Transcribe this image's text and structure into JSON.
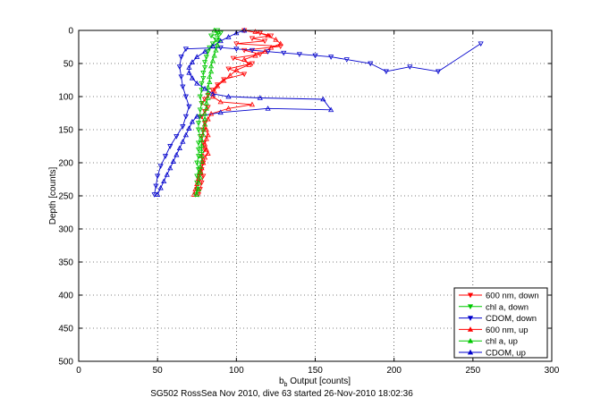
{
  "chart_data": {
    "type": "scatter",
    "xlabel_main": "b",
    "xlabel_sub": "b",
    "xlabel_rest": " Output [counts]",
    "ylabel": "Depth [counts]",
    "caption": "SG502 RossSea Nov 2010, dive 63 started 26-Nov-2010 18:02:36",
    "xlim": [
      0,
      300
    ],
    "ylim": [
      0,
      500
    ],
    "y_reversed": true,
    "xticks": [
      0,
      50,
      100,
      150,
      200,
      250,
      300
    ],
    "yticks": [
      0,
      50,
      100,
      150,
      200,
      250,
      300,
      350,
      400,
      450,
      500
    ],
    "grid": "dotted",
    "legend_position": "bottom-right",
    "series": [
      {
        "name": "600 nm, down",
        "color": "#ff0000",
        "marker": "down",
        "points": [
          [
            105,
            0
          ],
          [
            115,
            4
          ],
          [
            122,
            8
          ],
          [
            110,
            12
          ],
          [
            118,
            16
          ],
          [
            100,
            20
          ],
          [
            128,
            24
          ],
          [
            105,
            30
          ],
          [
            115,
            36
          ],
          [
            98,
            42
          ],
          [
            110,
            50
          ],
          [
            95,
            58
          ],
          [
            105,
            66
          ],
          [
            92,
            74
          ],
          [
            88,
            82
          ],
          [
            85,
            90
          ],
          [
            82,
            98
          ],
          [
            80,
            104
          ],
          [
            78,
            110
          ],
          [
            82,
            116
          ],
          [
            80,
            122
          ],
          [
            78,
            130
          ],
          [
            80,
            140
          ],
          [
            79,
            150
          ],
          [
            78,
            160
          ],
          [
            79,
            170
          ],
          [
            80,
            180
          ],
          [
            78,
            190
          ],
          [
            79,
            200
          ],
          [
            78,
            210
          ],
          [
            79,
            220
          ],
          [
            78,
            230
          ],
          [
            77,
            240
          ],
          [
            76,
            248
          ]
        ]
      },
      {
        "name": "chl a, down",
        "color": "#00c800",
        "marker": "down",
        "points": [
          [
            88,
            0
          ],
          [
            90,
            4
          ],
          [
            84,
            8
          ],
          [
            87,
            14
          ],
          [
            85,
            20
          ],
          [
            83,
            26
          ],
          [
            82,
            32
          ],
          [
            81,
            40
          ],
          [
            80,
            48
          ],
          [
            80,
            56
          ],
          [
            79,
            64
          ],
          [
            79,
            72
          ],
          [
            78,
            80
          ],
          [
            78,
            90
          ],
          [
            77,
            100
          ],
          [
            78,
            110
          ],
          [
            77,
            120
          ],
          [
            77,
            130
          ],
          [
            76,
            140
          ],
          [
            76,
            150
          ],
          [
            77,
            160
          ],
          [
            76,
            170
          ],
          [
            76,
            180
          ],
          [
            76,
            190
          ],
          [
            75,
            200
          ],
          [
            76,
            210
          ],
          [
            75,
            220
          ],
          [
            75,
            230
          ],
          [
            75,
            240
          ],
          [
            74,
            248
          ]
        ]
      },
      {
        "name": "CDOM, down",
        "color": "#0000cc",
        "marker": "down",
        "points": [
          [
            255,
            20
          ],
          [
            228,
            62
          ],
          [
            210,
            55
          ],
          [
            195,
            62
          ],
          [
            185,
            50
          ],
          [
            170,
            44
          ],
          [
            160,
            40
          ],
          [
            150,
            38
          ],
          [
            140,
            36
          ],
          [
            130,
            34
          ],
          [
            120,
            32
          ],
          [
            110,
            30
          ],
          [
            100,
            28
          ],
          [
            90,
            26
          ],
          [
            68,
            28
          ],
          [
            65,
            40
          ],
          [
            64,
            55
          ],
          [
            65,
            70
          ],
          [
            66,
            85
          ],
          [
            68,
            100
          ],
          [
            70,
            115
          ],
          [
            68,
            130
          ],
          [
            66,
            145
          ],
          [
            62,
            160
          ],
          [
            58,
            175
          ],
          [
            55,
            190
          ],
          [
            52,
            205
          ],
          [
            50,
            220
          ],
          [
            49,
            235
          ],
          [
            48,
            248
          ]
        ]
      },
      {
        "name": "600 nm, up",
        "color": "#ff0000",
        "marker": "up",
        "points": [
          [
            73,
            248
          ],
          [
            74,
            240
          ],
          [
            75,
            232
          ],
          [
            76,
            224
          ],
          [
            77,
            216
          ],
          [
            78,
            208
          ],
          [
            79,
            200
          ],
          [
            80,
            192
          ],
          [
            82,
            186
          ],
          [
            81,
            180
          ],
          [
            80,
            172
          ],
          [
            81,
            164
          ],
          [
            82,
            158
          ],
          [
            81,
            150
          ],
          [
            80,
            142
          ],
          [
            82,
            134
          ],
          [
            84,
            126
          ],
          [
            95,
            118
          ],
          [
            110,
            112
          ],
          [
            90,
            108
          ],
          [
            85,
            100
          ],
          [
            86,
            92
          ],
          [
            88,
            84
          ],
          [
            92,
            76
          ],
          [
            96,
            68
          ],
          [
            100,
            60
          ],
          [
            108,
            52
          ],
          [
            105,
            44
          ],
          [
            112,
            38
          ],
          [
            118,
            32
          ],
          [
            122,
            26
          ],
          [
            128,
            20
          ],
          [
            125,
            14
          ],
          [
            120,
            8
          ],
          [
            112,
            2
          ]
        ]
      },
      {
        "name": "chl a, up",
        "color": "#00c800",
        "marker": "up",
        "points": [
          [
            75,
            248
          ],
          [
            76,
            240
          ],
          [
            76,
            230
          ],
          [
            77,
            222
          ],
          [
            77,
            214
          ],
          [
            77,
            206
          ],
          [
            78,
            198
          ],
          [
            78,
            190
          ],
          [
            78,
            182
          ],
          [
            78,
            174
          ],
          [
            78,
            166
          ],
          [
            79,
            158
          ],
          [
            79,
            150
          ],
          [
            80,
            142
          ],
          [
            80,
            134
          ],
          [
            80,
            126
          ],
          [
            81,
            118
          ],
          [
            81,
            110
          ],
          [
            82,
            102
          ],
          [
            82,
            94
          ],
          [
            82,
            86
          ],
          [
            83,
            78
          ],
          [
            83,
            70
          ],
          [
            84,
            62
          ],
          [
            84,
            54
          ],
          [
            85,
            46
          ],
          [
            86,
            38
          ],
          [
            87,
            30
          ],
          [
            88,
            22
          ],
          [
            89,
            14
          ],
          [
            88,
            6
          ],
          [
            86,
            0
          ]
        ]
      },
      {
        "name": "CDOM, up",
        "color": "#0000cc",
        "marker": "up",
        "points": [
          [
            50,
            248
          ],
          [
            52,
            238
          ],
          [
            54,
            228
          ],
          [
            56,
            218
          ],
          [
            58,
            208
          ],
          [
            60,
            198
          ],
          [
            62,
            188
          ],
          [
            64,
            178
          ],
          [
            66,
            168
          ],
          [
            68,
            158
          ],
          [
            70,
            148
          ],
          [
            72,
            138
          ],
          [
            75,
            130
          ],
          [
            90,
            124
          ],
          [
            120,
            118
          ],
          [
            160,
            120
          ],
          [
            155,
            104
          ],
          [
            115,
            102
          ],
          [
            95,
            100
          ],
          [
            85,
            96
          ],
          [
            80,
            88
          ],
          [
            75,
            80
          ],
          [
            72,
            72
          ],
          [
            70,
            64
          ],
          [
            70,
            56
          ],
          [
            72,
            48
          ],
          [
            75,
            40
          ],
          [
            80,
            32
          ],
          [
            85,
            24
          ],
          [
            90,
            16
          ],
          [
            95,
            10
          ],
          [
            100,
            4
          ],
          [
            105,
            0
          ]
        ]
      }
    ]
  }
}
